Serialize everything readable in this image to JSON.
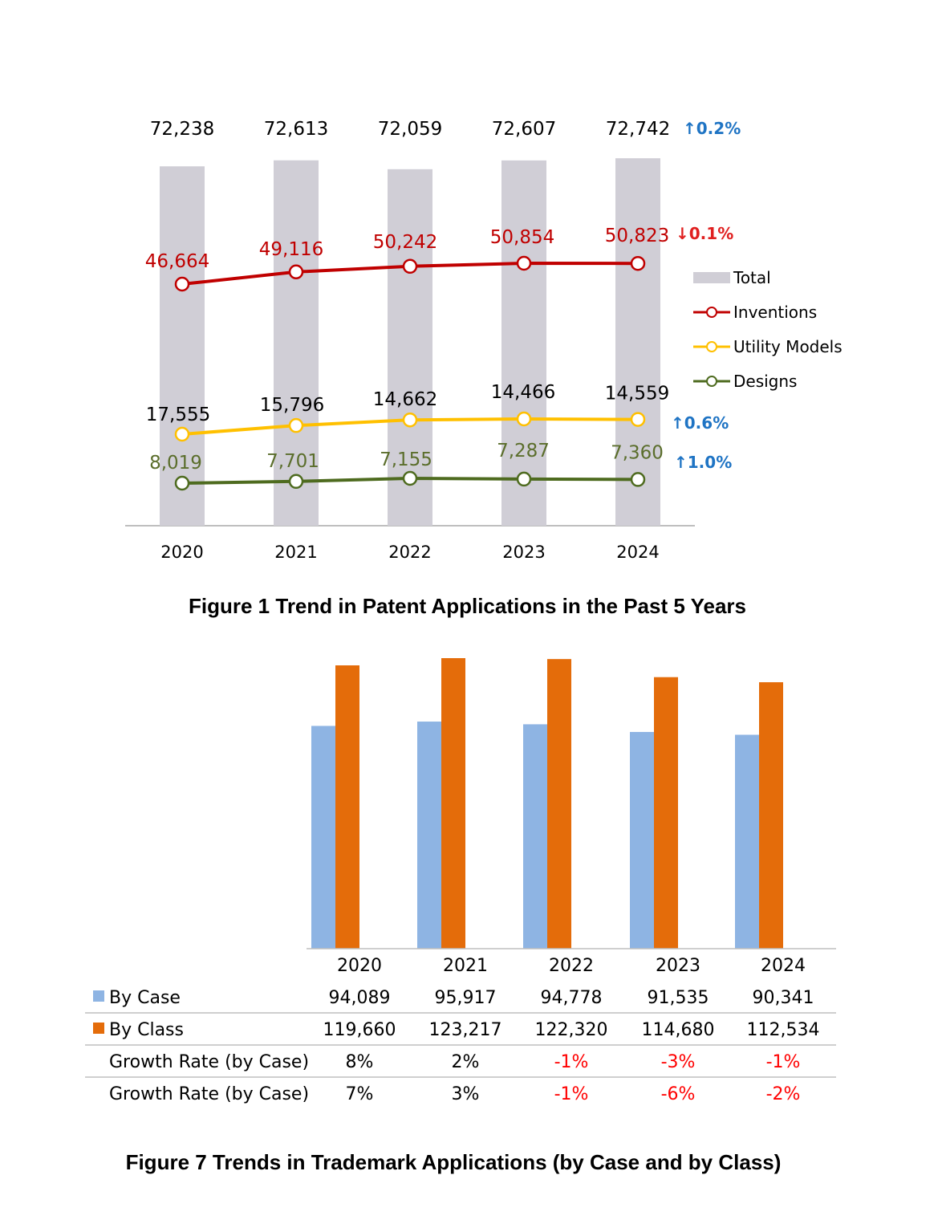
{
  "chart_data": [
    {
      "type": "bar+line",
      "title": "Figure 1 Trend in Patent Applications in the Past 5 Years",
      "categories": [
        "2020",
        "2021",
        "2022",
        "2023",
        "2024"
      ],
      "series": [
        {
          "name": "Total",
          "kind": "bar",
          "color": "#d0ced6",
          "values": [
            72238,
            72613,
            72059,
            72607,
            72742
          ],
          "labels": [
            "72,238",
            "72,613",
            "72,059",
            "72,607",
            "72,742"
          ],
          "label_color": "#000000",
          "change": "↑0.2%",
          "change_color": "#1f74c4"
        },
        {
          "name": "Inventions",
          "kind": "line",
          "color": "#c00000",
          "values": [
            46664,
            49116,
            50242,
            50854,
            50823
          ],
          "labels": [
            "46,664",
            "49,116",
            "50,242",
            "50,854",
            "50,823"
          ],
          "label_color": "#c00000",
          "change": "↓0.1%",
          "change_color": "#e02020"
        },
        {
          "name": "Utility Models",
          "kind": "line",
          "color": "#ffc000",
          "values": [
            17555,
            15796,
            14662,
            14466,
            14559
          ],
          "labels": [
            "17,555",
            "15,796",
            "14,662",
            "14,466",
            "14,559"
          ],
          "label_color": "#000000",
          "change": "↑0.6%",
          "change_color": "#1f74c4"
        },
        {
          "name": "Designs",
          "kind": "line",
          "color": "#4e6b1f",
          "values": [
            8019,
            7701,
            7155,
            7287,
            7360
          ],
          "labels": [
            "8,019",
            "7,701",
            "7,155",
            "7,287",
            "7,360"
          ],
          "label_color": "#5b6e2c",
          "change": "↑1.0%",
          "change_color": "#1f74c4"
        }
      ],
      "legend": "right"
    },
    {
      "type": "bar",
      "title": "Figure 7 Trends in Trademark Applications (by Case and by Class)",
      "categories": [
        "2020",
        "2021",
        "2022",
        "2023",
        "2024"
      ],
      "series": [
        {
          "name": "By Case",
          "color": "#8eb4e3",
          "values": [
            94089,
            95917,
            94778,
            91535,
            90341
          ],
          "labels": [
            "94,089",
            "95,917",
            "94,778",
            "91,535",
            "90,341"
          ]
        },
        {
          "name": "By Class",
          "color": "#e46c0a",
          "values": [
            119660,
            123217,
            122320,
            114680,
            112534
          ],
          "labels": [
            "119,660",
            "123,217",
            "122,320",
            "114,680",
            "112,534"
          ]
        }
      ],
      "table_rows": [
        {
          "label": "Growth Rate (by Case)",
          "values": [
            "8%",
            "2%",
            "-1%",
            "-3%",
            "-1%"
          ]
        },
        {
          "label": "Growth Rate (by Case)",
          "values": [
            "7%",
            "3%",
            "-1%",
            "-6%",
            "-2%"
          ]
        }
      ],
      "negative_color": "#ff0000",
      "ylim": [
        0,
        130000
      ]
    }
  ]
}
